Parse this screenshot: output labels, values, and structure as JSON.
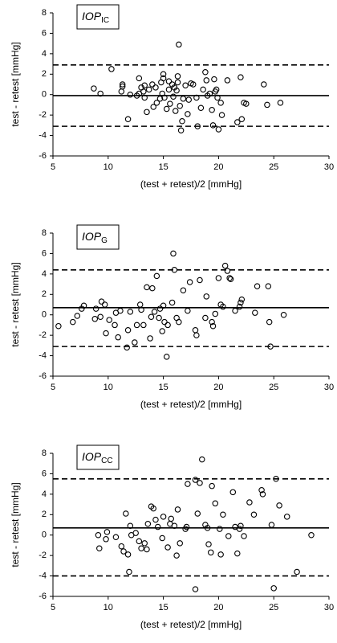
{
  "chart_data": [
    {
      "type": "scatter",
      "title": "IOP",
      "title_subscript": "IC",
      "xlabel": "(test + retest)/2 [mmHg]",
      "ylabel": "test - retest [mmHg]",
      "xlim": [
        5,
        30
      ],
      "xticks": [
        5,
        10,
        15,
        20,
        25,
        30
      ],
      "ylim": [
        -6,
        8
      ],
      "yticks": [
        -6,
        -4,
        -2,
        0,
        2,
        4,
        6,
        8
      ],
      "color": "#000000",
      "hlines": [
        {
          "value": 2.9,
          "style": "dashed"
        },
        {
          "value": -0.1,
          "style": "solid"
        },
        {
          "value": -3.1,
          "style": "dashed"
        }
      ],
      "x": [
        8.7,
        9.3,
        10.3,
        11.2,
        11.3,
        11.3,
        11.8,
        12.0,
        12.6,
        12.8,
        12.8,
        13.0,
        13.2,
        13.3,
        13.3,
        13.5,
        13.7,
        14.0,
        14.1,
        14.3,
        14.4,
        14.7,
        14.8,
        14.9,
        15.0,
        15.0,
        15.1,
        15.3,
        15.5,
        15.5,
        15.6,
        15.8,
        15.9,
        16.0,
        16.1,
        16.2,
        16.3,
        16.3,
        16.4,
        16.5,
        16.6,
        16.7,
        16.8,
        17.0,
        17.2,
        17.3,
        17.5,
        17.7,
        18.0,
        18.1,
        18.4,
        18.6,
        18.8,
        18.9,
        19.0,
        19.2,
        19.4,
        19.5,
        19.6,
        19.7,
        19.8,
        19.9,
        20.0,
        20.2,
        20.3,
        20.8,
        21.7,
        22.0,
        22.1,
        22.3,
        22.5,
        24.1,
        24.4,
        25.6
      ],
      "values": [
        0.6,
        0.1,
        2.5,
        0.3,
        0.8,
        1.0,
        -2.4,
        0.0,
        -0.1,
        0.1,
        1.6,
        0.7,
        0.3,
        -0.3,
        0.9,
        -1.7,
        0.5,
        1.0,
        -1.2,
        0.7,
        -0.8,
        -0.4,
        1.2,
        0.1,
        1.6,
        2.0,
        -0.3,
        -1.4,
        0.5,
        1.3,
        -0.9,
        1.0,
        -0.2,
        0.7,
        -1.6,
        0.4,
        1.2,
        1.8,
        4.9,
        -1.1,
        -3.5,
        -2.6,
        -0.4,
        0.9,
        -1.9,
        -0.5,
        1.1,
        1.0,
        -0.3,
        -3.1,
        -1.3,
        0.5,
        2.2,
        1.4,
        -0.1,
        0.1,
        -1.5,
        -3.0,
        1.5,
        0.3,
        0.5,
        -0.3,
        -3.4,
        -0.8,
        -2.0,
        1.4,
        -2.7,
        1.7,
        -2.4,
        -0.8,
        -0.9,
        1.0,
        -1.0,
        -0.8
      ]
    },
    {
      "type": "scatter",
      "title": "IOP",
      "title_subscript": "G",
      "xlabel": "(test + retest)/2 [mmHg]",
      "ylabel": "test - retest [mmHg]",
      "xlim": [
        5,
        30
      ],
      "xticks": [
        5,
        10,
        15,
        20,
        25,
        30
      ],
      "ylim": [
        -6,
        8
      ],
      "yticks": [
        -6,
        -4,
        -2,
        0,
        2,
        4,
        6,
        8
      ],
      "color": "#000000",
      "hlines": [
        {
          "value": 4.4,
          "style": "dashed"
        },
        {
          "value": 0.7,
          "style": "solid"
        },
        {
          "value": -3.1,
          "style": "dashed"
        }
      ],
      "x": [
        5.5,
        6.8,
        7.2,
        7.6,
        7.8,
        8.8,
        8.9,
        9.3,
        9.4,
        9.7,
        9.8,
        10.1,
        10.6,
        10.7,
        10.9,
        11.1,
        11.7,
        11.8,
        12.0,
        12.4,
        12.6,
        12.9,
        13.0,
        13.2,
        13.5,
        13.8,
        13.9,
        14.0,
        14.2,
        14.4,
        14.6,
        14.7,
        14.9,
        15.0,
        15.1,
        15.3,
        15.4,
        15.8,
        15.9,
        16.0,
        16.2,
        16.4,
        16.8,
        17.2,
        17.4,
        17.9,
        18.0,
        18.3,
        18.8,
        18.9,
        19.4,
        19.5,
        19.7,
        20.0,
        20.2,
        20.4,
        20.6,
        20.8,
        21.0,
        21.1,
        21.5,
        21.9,
        22.0,
        22.1,
        23.3,
        23.5,
        24.5,
        24.6,
        24.7,
        25.9
      ],
      "values": [
        -1.1,
        -0.7,
        -0.1,
        0.6,
        0.9,
        -0.4,
        0.6,
        -0.2,
        1.3,
        1.0,
        -1.8,
        -0.5,
        -1.0,
        0.2,
        -2.2,
        0.4,
        -3.2,
        -1.5,
        0.3,
        -2.7,
        -1.0,
        1.0,
        0.5,
        -1.0,
        2.7,
        -2.3,
        -0.2,
        2.6,
        0.3,
        3.8,
        -0.3,
        0.6,
        -1.6,
        0.9,
        -0.7,
        -4.1,
        -1.0,
        1.2,
        6.0,
        4.4,
        -0.3,
        -0.7,
        2.4,
        0.4,
        3.2,
        -1.5,
        -2.0,
        3.4,
        -0.3,
        1.8,
        -0.7,
        -1.1,
        0.1,
        3.6,
        1.0,
        0.8,
        4.8,
        4.3,
        3.6,
        3.5,
        0.4,
        0.8,
        1.2,
        1.5,
        0.2,
        2.8,
        2.8,
        -0.7,
        -3.1,
        0.0
      ]
    },
    {
      "type": "scatter",
      "title": "IOP",
      "title_subscript": "CC",
      "xlabel": "(test + retest)/2 [mmHg]",
      "ylabel": "test - retest [mmHg]",
      "xlim": [
        5,
        30
      ],
      "xticks": [
        5,
        10,
        15,
        20,
        25,
        30
      ],
      "ylim": [
        -6,
        8
      ],
      "yticks": [
        -6,
        -4,
        -2,
        0,
        2,
        4,
        6,
        8
      ],
      "color": "#000000",
      "hlines": [
        {
          "value": 5.5,
          "style": "dashed"
        },
        {
          "value": 0.7,
          "style": "solid"
        },
        {
          "value": -4.0,
          "style": "dashed"
        }
      ],
      "x": [
        9.1,
        9.2,
        9.8,
        9.9,
        10.7,
        11.2,
        11.4,
        11.6,
        11.8,
        11.9,
        12.0,
        12.1,
        12.5,
        12.8,
        13.0,
        13.3,
        13.5,
        13.6,
        13.9,
        14.1,
        14.3,
        14.5,
        14.9,
        15.0,
        15.4,
        15.6,
        15.7,
        16.0,
        16.2,
        16.3,
        16.5,
        17.0,
        17.1,
        17.2,
        17.9,
        17.9,
        18.1,
        18.3,
        18.5,
        18.8,
        19.0,
        19.1,
        19.3,
        19.4,
        19.7,
        20.1,
        20.2,
        20.4,
        20.9,
        21.3,
        21.5,
        21.7,
        21.9,
        22.0,
        22.3,
        22.8,
        23.2,
        23.9,
        24.0,
        24.8,
        25.0,
        25.2,
        25.5,
        26.2,
        27.1,
        28.4
      ],
      "values": [
        0.0,
        -1.3,
        -0.4,
        0.3,
        -0.2,
        -1.1,
        -1.6,
        2.1,
        -1.9,
        -3.6,
        0.9,
        0.0,
        0.2,
        -0.6,
        -1.3,
        -0.8,
        -1.4,
        1.1,
        2.8,
        2.6,
        1.5,
        0.8,
        -0.3,
        1.8,
        -1.2,
        1.1,
        1.6,
        0.9,
        -2.0,
        2.5,
        -0.8,
        0.6,
        0.8,
        5.0,
        -5.3,
        5.4,
        2.1,
        5.1,
        7.4,
        1.0,
        0.7,
        -0.9,
        -1.7,
        4.8,
        3.1,
        0.6,
        -1.9,
        2.0,
        -0.1,
        4.2,
        0.8,
        -1.8,
        0.6,
        0.9,
        -0.1,
        3.2,
        2.0,
        4.4,
        4.0,
        1.0,
        -5.2,
        5.5,
        2.9,
        1.8,
        -3.6,
        0.0
      ]
    }
  ]
}
